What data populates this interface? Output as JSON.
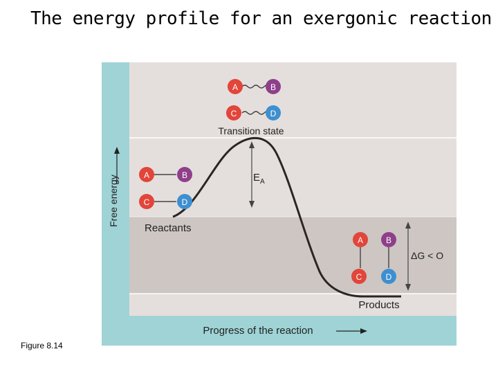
{
  "title": "The energy profile for an exergonic reaction",
  "figure_label": "Figure 8.14",
  "axes": {
    "y_label": "Free energy",
    "x_label": "Progress of the reaction"
  },
  "states": {
    "transition": "Transition state",
    "reactants": "Reactants",
    "products": "Products"
  },
  "annotations": {
    "activation_energy": "E",
    "activation_energy_sub": "A",
    "delta_g": "ΔG < O"
  },
  "molecules": {
    "a": "A",
    "b": "B",
    "c": "C",
    "d": "D"
  },
  "colors": {
    "a": "#e2453a",
    "b": "#8e3f8a",
    "c": "#e2453a",
    "d": "#3e8fd0",
    "panel_frame": "#9fd3d6",
    "band_light": "#e4dfdd",
    "band_dark": "#cdc6c3",
    "curve": "#2a2624"
  }
}
